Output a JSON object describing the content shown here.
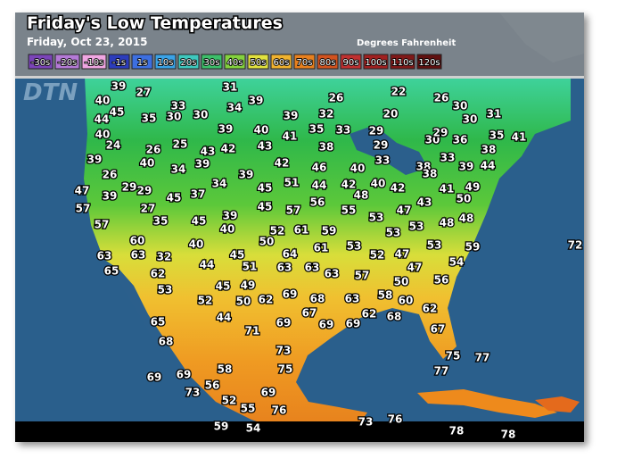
{
  "header": {
    "title": "Friday's Low Temperatures",
    "subtitle": "Friday, Oct 23, 2015",
    "units": "Degrees Fahrenheit",
    "legend": [
      {
        "label": "-30s",
        "color": "#7b44b8"
      },
      {
        "label": "-20s",
        "color": "#b47ad6"
      },
      {
        "label": "-10s",
        "color": "#f0a6e2"
      },
      {
        "label": "-1s",
        "color": "#2c3cbc"
      },
      {
        "label": "1s",
        "color": "#3d6fe0"
      },
      {
        "label": "10s",
        "color": "#3aa2e6"
      },
      {
        "label": "20s",
        "color": "#3ec8be"
      },
      {
        "label": "30s",
        "color": "#3cbf6a"
      },
      {
        "label": "40s",
        "color": "#84d23e"
      },
      {
        "label": "50s",
        "color": "#e2e23e"
      },
      {
        "label": "60s",
        "color": "#f0b22e"
      },
      {
        "label": "70s",
        "color": "#e8801e"
      },
      {
        "label": "80s",
        "color": "#d2521e"
      },
      {
        "label": "90s",
        "color": "#c03030"
      },
      {
        "label": "100s",
        "color": "#a02020"
      },
      {
        "label": "110s",
        "color": "#801818"
      },
      {
        "label": "120s",
        "color": "#601010"
      }
    ]
  },
  "logo": "DTN",
  "temperatures": [
    39,
    27,
    31,
    26,
    22,
    26,
    30,
    40,
    45,
    33,
    39,
    34,
    30,
    35,
    30,
    44,
    32,
    20,
    31,
    39,
    30,
    40,
    39,
    40,
    41,
    35,
    33,
    29,
    24,
    25,
    26,
    43,
    42,
    43,
    38,
    29,
    30,
    29,
    36,
    35,
    41,
    38,
    39,
    40,
    34,
    39,
    42,
    46,
    40,
    33,
    38,
    38,
    33,
    39,
    44,
    26,
    39,
    51,
    44,
    42,
    40,
    42,
    41,
    49,
    47,
    29,
    29,
    45,
    37,
    34,
    45,
    48,
    50,
    57,
    39,
    27,
    45,
    57,
    56,
    55,
    47,
    43,
    48,
    48,
    57,
    35,
    45,
    39,
    40,
    52,
    61,
    59,
    53,
    53,
    53,
    60,
    50,
    40,
    61,
    53,
    53,
    59,
    72,
    63,
    63,
    32,
    45,
    64,
    52,
    47,
    54,
    65,
    44,
    51,
    63,
    63,
    63,
    47,
    62,
    53,
    45,
    49,
    57,
    50,
    56,
    52,
    50,
    62,
    69,
    68,
    63,
    58,
    60,
    65,
    44,
    69,
    67,
    69,
    69,
    62,
    68,
    62,
    71,
    67,
    68,
    73,
    75,
    77,
    58,
    75,
    77,
    69,
    69,
    73,
    56,
    69,
    52,
    55,
    76,
    73,
    76,
    59,
    54,
    78,
    78
  ]
}
